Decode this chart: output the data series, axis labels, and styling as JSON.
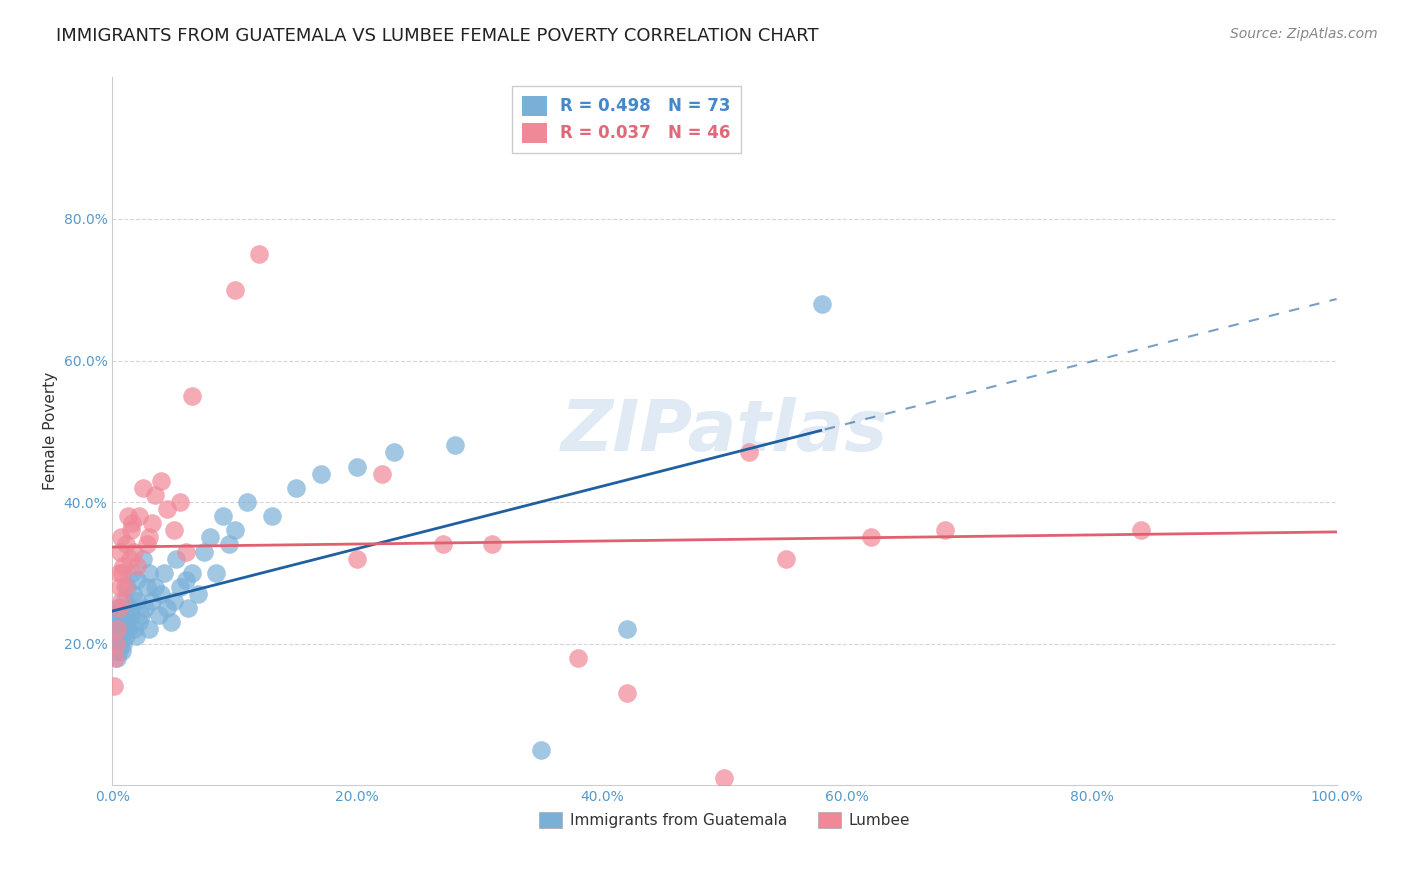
{
  "title": "IMMIGRANTS FROM GUATEMALA VS LUMBEE FEMALE POVERTY CORRELATION CHART",
  "source": "Source: ZipAtlas.com",
  "xlabel": "",
  "ylabel": "Female Poverty",
  "xlim": [
    0,
    1.0
  ],
  "ylim": [
    0,
    1.0
  ],
  "xticks": [
    0,
    0.2,
    0.4,
    0.6,
    0.8,
    1.0
  ],
  "yticks": [
    0.2,
    0.4,
    0.6,
    0.8
  ],
  "xtick_labels": [
    "0.0%",
    "20.0%",
    "40.0%",
    "60.0%",
    "80.0%",
    "100.0%"
  ],
  "ytick_labels": [
    "20.0%",
    "40.0%",
    "60.0%",
    "80.0%"
  ],
  "legend_entries": [
    {
      "label": "R = 0.498   N = 73",
      "color": "#a8c4e0"
    },
    {
      "label": "R = 0.037   N = 46",
      "color": "#f0a0b0"
    }
  ],
  "watermark": "ZIPatlas",
  "guatemala_color": "#7ab0d8",
  "lumbee_color": "#f08898",
  "guatemala_line_color": "#2060a0",
  "lumbee_line_color": "#e06070",
  "guatemala_R": 0.498,
  "lumbee_R": 0.037,
  "guatemala_x": [
    0.001,
    0.002,
    0.002,
    0.003,
    0.003,
    0.004,
    0.004,
    0.004,
    0.005,
    0.005,
    0.005,
    0.005,
    0.006,
    0.006,
    0.006,
    0.007,
    0.007,
    0.007,
    0.008,
    0.008,
    0.009,
    0.009,
    0.01,
    0.01,
    0.011,
    0.012,
    0.012,
    0.013,
    0.014,
    0.015,
    0.016,
    0.017,
    0.018,
    0.019,
    0.02,
    0.02,
    0.022,
    0.023,
    0.025,
    0.027,
    0.028,
    0.03,
    0.03,
    0.032,
    0.035,
    0.038,
    0.04,
    0.042,
    0.045,
    0.048,
    0.05,
    0.052,
    0.055,
    0.06,
    0.062,
    0.065,
    0.07,
    0.075,
    0.08,
    0.085,
    0.09,
    0.095,
    0.1,
    0.11,
    0.13,
    0.15,
    0.17,
    0.2,
    0.23,
    0.28,
    0.35,
    0.42,
    0.58
  ],
  "guatemala_y": [
    0.21,
    0.19,
    0.22,
    0.2,
    0.23,
    0.21,
    0.18,
    0.25,
    0.2,
    0.22,
    0.24,
    0.19,
    0.21,
    0.23,
    0.2,
    0.22,
    0.25,
    0.21,
    0.19,
    0.23,
    0.22,
    0.2,
    0.24,
    0.26,
    0.21,
    0.23,
    0.28,
    0.22,
    0.25,
    0.24,
    0.3,
    0.27,
    0.22,
    0.21,
    0.26,
    0.29,
    0.23,
    0.24,
    0.32,
    0.25,
    0.28,
    0.22,
    0.3,
    0.26,
    0.28,
    0.24,
    0.27,
    0.3,
    0.25,
    0.23,
    0.26,
    0.32,
    0.28,
    0.29,
    0.25,
    0.3,
    0.27,
    0.33,
    0.35,
    0.3,
    0.38,
    0.34,
    0.36,
    0.4,
    0.38,
    0.42,
    0.44,
    0.45,
    0.47,
    0.48,
    0.05,
    0.22,
    0.68
  ],
  "lumbee_x": [
    0.001,
    0.002,
    0.003,
    0.004,
    0.005,
    0.005,
    0.006,
    0.006,
    0.007,
    0.007,
    0.008,
    0.009,
    0.01,
    0.011,
    0.013,
    0.014,
    0.015,
    0.016,
    0.018,
    0.02,
    0.022,
    0.025,
    0.028,
    0.03,
    0.032,
    0.035,
    0.04,
    0.045,
    0.05,
    0.055,
    0.06,
    0.065,
    0.1,
    0.12,
    0.2,
    0.22,
    0.27,
    0.31,
    0.38,
    0.42,
    0.5,
    0.55,
    0.62,
    0.68,
    0.84,
    0.52
  ],
  "lumbee_y": [
    0.14,
    0.18,
    0.2,
    0.22,
    0.3,
    0.25,
    0.28,
    0.33,
    0.26,
    0.35,
    0.3,
    0.31,
    0.28,
    0.34,
    0.38,
    0.32,
    0.36,
    0.37,
    0.33,
    0.31,
    0.38,
    0.42,
    0.34,
    0.35,
    0.37,
    0.41,
    0.43,
    0.39,
    0.36,
    0.4,
    0.33,
    0.55,
    0.7,
    0.75,
    0.32,
    0.44,
    0.34,
    0.34,
    0.18,
    0.13,
    0.01,
    0.32,
    0.35,
    0.36,
    0.36,
    0.47
  ],
  "background_color": "#ffffff",
  "grid_color": "#cccccc",
  "title_fontsize": 13,
  "axis_label_fontsize": 11,
  "tick_fontsize": 10,
  "tick_color": "#5599cc",
  "source_fontsize": 10,
  "source_color": "#888888"
}
